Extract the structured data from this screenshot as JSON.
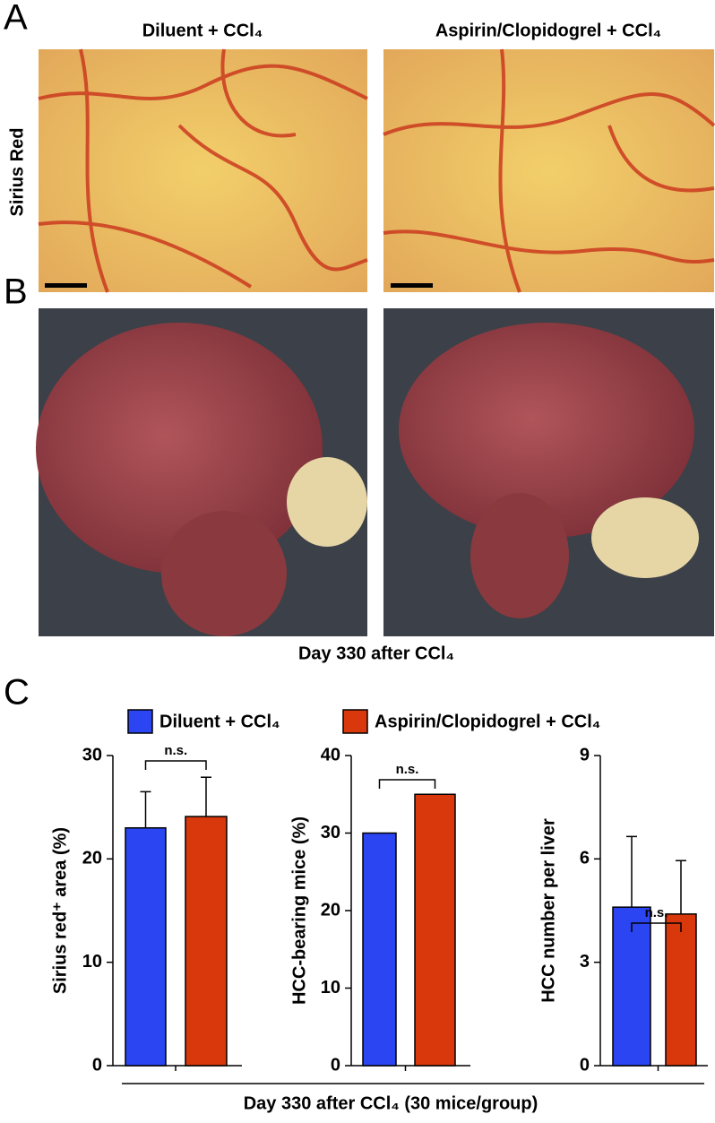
{
  "panels": {
    "a_label": "A",
    "b_label": "B",
    "c_label": "C",
    "col_titles": [
      "Diluent + CCl₄",
      "Aspirin/Clopidogrel + CCl₄"
    ],
    "row_label": "Sirius Red",
    "b_caption": "Day 330 after CCl₄"
  },
  "legend": {
    "items": [
      {
        "name": "Diluent + CCl₄",
        "color": "#2b45f2"
      },
      {
        "name": "Aspirin/Clopidogrel + CCl₄",
        "color": "#d8380c"
      }
    ]
  },
  "x_label": "Day 330 after CCl₄ (30 mice/group)",
  "chart_data": [
    {
      "type": "bar",
      "y_label": "Sirius red⁺ area (%)",
      "values": [
        23.0,
        24.1
      ],
      "errors": [
        3.5,
        3.8
      ],
      "annotation": "n.s.",
      "ylim": [
        0,
        30
      ],
      "yticks": [
        0,
        10,
        20,
        30
      ]
    },
    {
      "type": "bar",
      "y_label": "HCC-bearing mice (%)",
      "values": [
        30,
        35
      ],
      "annotation": "n.s.",
      "ylim": [
        0,
        40
      ],
      "yticks": [
        0,
        10,
        20,
        30,
        40
      ]
    },
    {
      "type": "bar",
      "y_label": "HCC number per liver",
      "values": [
        4.6,
        4.4
      ],
      "errors": [
        2.05,
        1.55
      ],
      "annotation": "n.s.",
      "ylim": [
        0,
        9
      ],
      "yticks": [
        0,
        3,
        6,
        9
      ]
    }
  ]
}
